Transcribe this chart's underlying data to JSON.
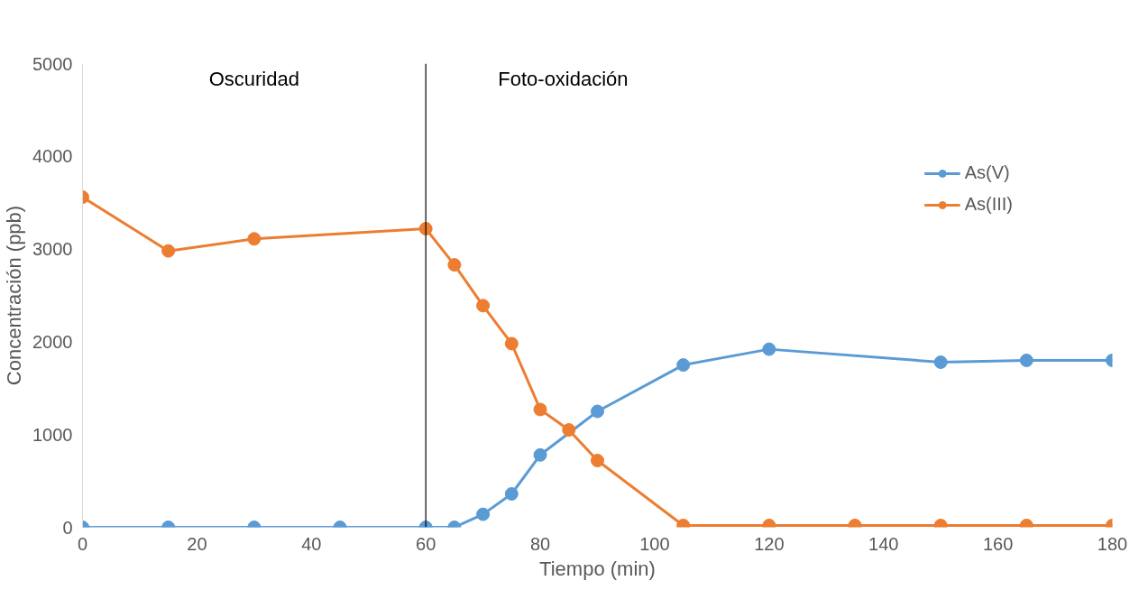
{
  "chart_data": {
    "type": "line",
    "xlabel": "Tiempo (min)",
    "ylabel": "Concentración (ppb)",
    "xlim": [
      0,
      180
    ],
    "ylim": [
      0,
      5000
    ],
    "xticks": [
      0,
      20,
      40,
      60,
      80,
      100,
      120,
      140,
      160,
      180
    ],
    "yticks": [
      0,
      1000,
      2000,
      3000,
      4000,
      5000
    ],
    "grid": false,
    "legend": "right",
    "marker": "circle",
    "line_style": "solid",
    "series": [
      {
        "name": "As(V)",
        "color": "#5b9bd5",
        "x": [
          0,
          15,
          30,
          45,
          60,
          65,
          70,
          75,
          80,
          90,
          105,
          120,
          150,
          165,
          180
        ],
        "values": [
          0,
          0,
          0,
          0,
          0,
          0,
          140,
          360,
          780,
          1250,
          1750,
          1920,
          1780,
          1800,
          1800
        ]
      },
      {
        "name": "As(III)",
        "color": "#ed7d31",
        "x": [
          0,
          15,
          30,
          60,
          65,
          70,
          75,
          80,
          85,
          90,
          105,
          120,
          135,
          150,
          165,
          180
        ],
        "values": [
          3560,
          2980,
          3110,
          3220,
          2830,
          2390,
          1980,
          1270,
          1050,
          720,
          20,
          20,
          20,
          20,
          20,
          20
        ]
      }
    ],
    "ref_lines": [
      {
        "axis": "x",
        "value": 60,
        "color": "#000000"
      }
    ],
    "annotations": [
      "Oscuridad",
      "Foto-oxidación"
    ]
  }
}
